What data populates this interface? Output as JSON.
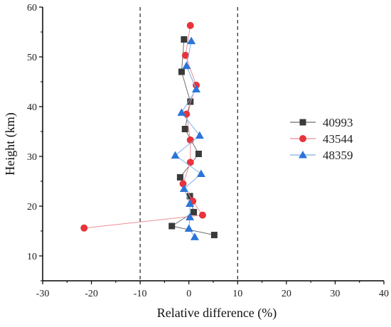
{
  "chart_data": {
    "type": "scatter",
    "xlabel": "Relative difference (%)",
    "ylabel": "Height (km)",
    "xlim": [
      -30,
      40
    ],
    "ylim": [
      5,
      60
    ],
    "xticks": [
      -30,
      -20,
      -10,
      0,
      10,
      20,
      30,
      40
    ],
    "yticks": [
      10,
      20,
      30,
      40,
      50,
      60
    ],
    "reference_lines_x": [
      -10,
      10
    ],
    "legend_position": "right",
    "series": [
      {
        "name": "40993",
        "marker": "square",
        "color": "#3a3a3a",
        "line_color": "#6e6e6e",
        "points": [
          {
            "x": -1.0,
            "y": 53.5
          },
          {
            "x": -1.5,
            "y": 47.0
          },
          {
            "x": 0.3,
            "y": 41.0
          },
          {
            "x": -0.8,
            "y": 35.5
          },
          {
            "x": 2.0,
            "y": 30.5
          },
          {
            "x": -1.8,
            "y": 25.8
          },
          {
            "x": 0.2,
            "y": 22.0
          },
          {
            "x": 1.0,
            "y": 18.8
          },
          {
            "x": -3.5,
            "y": 16.0
          },
          {
            "x": 5.2,
            "y": 14.2
          }
        ]
      },
      {
        "name": "43544",
        "marker": "circle",
        "color": "#e8343c",
        "line_color": "#ec8f93",
        "points": [
          {
            "x": 0.3,
            "y": 56.3
          },
          {
            "x": -0.7,
            "y": 50.3
          },
          {
            "x": 1.5,
            "y": 44.3
          },
          {
            "x": -0.5,
            "y": 38.5
          },
          {
            "x": 0.3,
            "y": 33.3
          },
          {
            "x": 0.3,
            "y": 28.8
          },
          {
            "x": -1.2,
            "y": 24.5
          },
          {
            "x": 0.8,
            "y": 21.0
          },
          {
            "x": 2.8,
            "y": 18.2
          },
          {
            "x": -21.5,
            "y": 15.6
          }
        ]
      },
      {
        "name": "48359",
        "marker": "triangle",
        "color": "#2b74d8",
        "line_color": "#7faee8",
        "points": [
          {
            "x": 0.5,
            "y": 53.2
          },
          {
            "x": -0.5,
            "y": 48.2
          },
          {
            "x": 1.5,
            "y": 43.5
          },
          {
            "x": -1.5,
            "y": 38.8
          },
          {
            "x": 2.2,
            "y": 34.2
          },
          {
            "x": -2.8,
            "y": 30.2
          },
          {
            "x": 2.5,
            "y": 26.5
          },
          {
            "x": -1.0,
            "y": 23.5
          },
          {
            "x": 0.2,
            "y": 20.5
          },
          {
            "x": 0.2,
            "y": 17.8
          },
          {
            "x": 0.0,
            "y": 15.5
          },
          {
            "x": 1.2,
            "y": 13.8
          }
        ]
      }
    ]
  }
}
